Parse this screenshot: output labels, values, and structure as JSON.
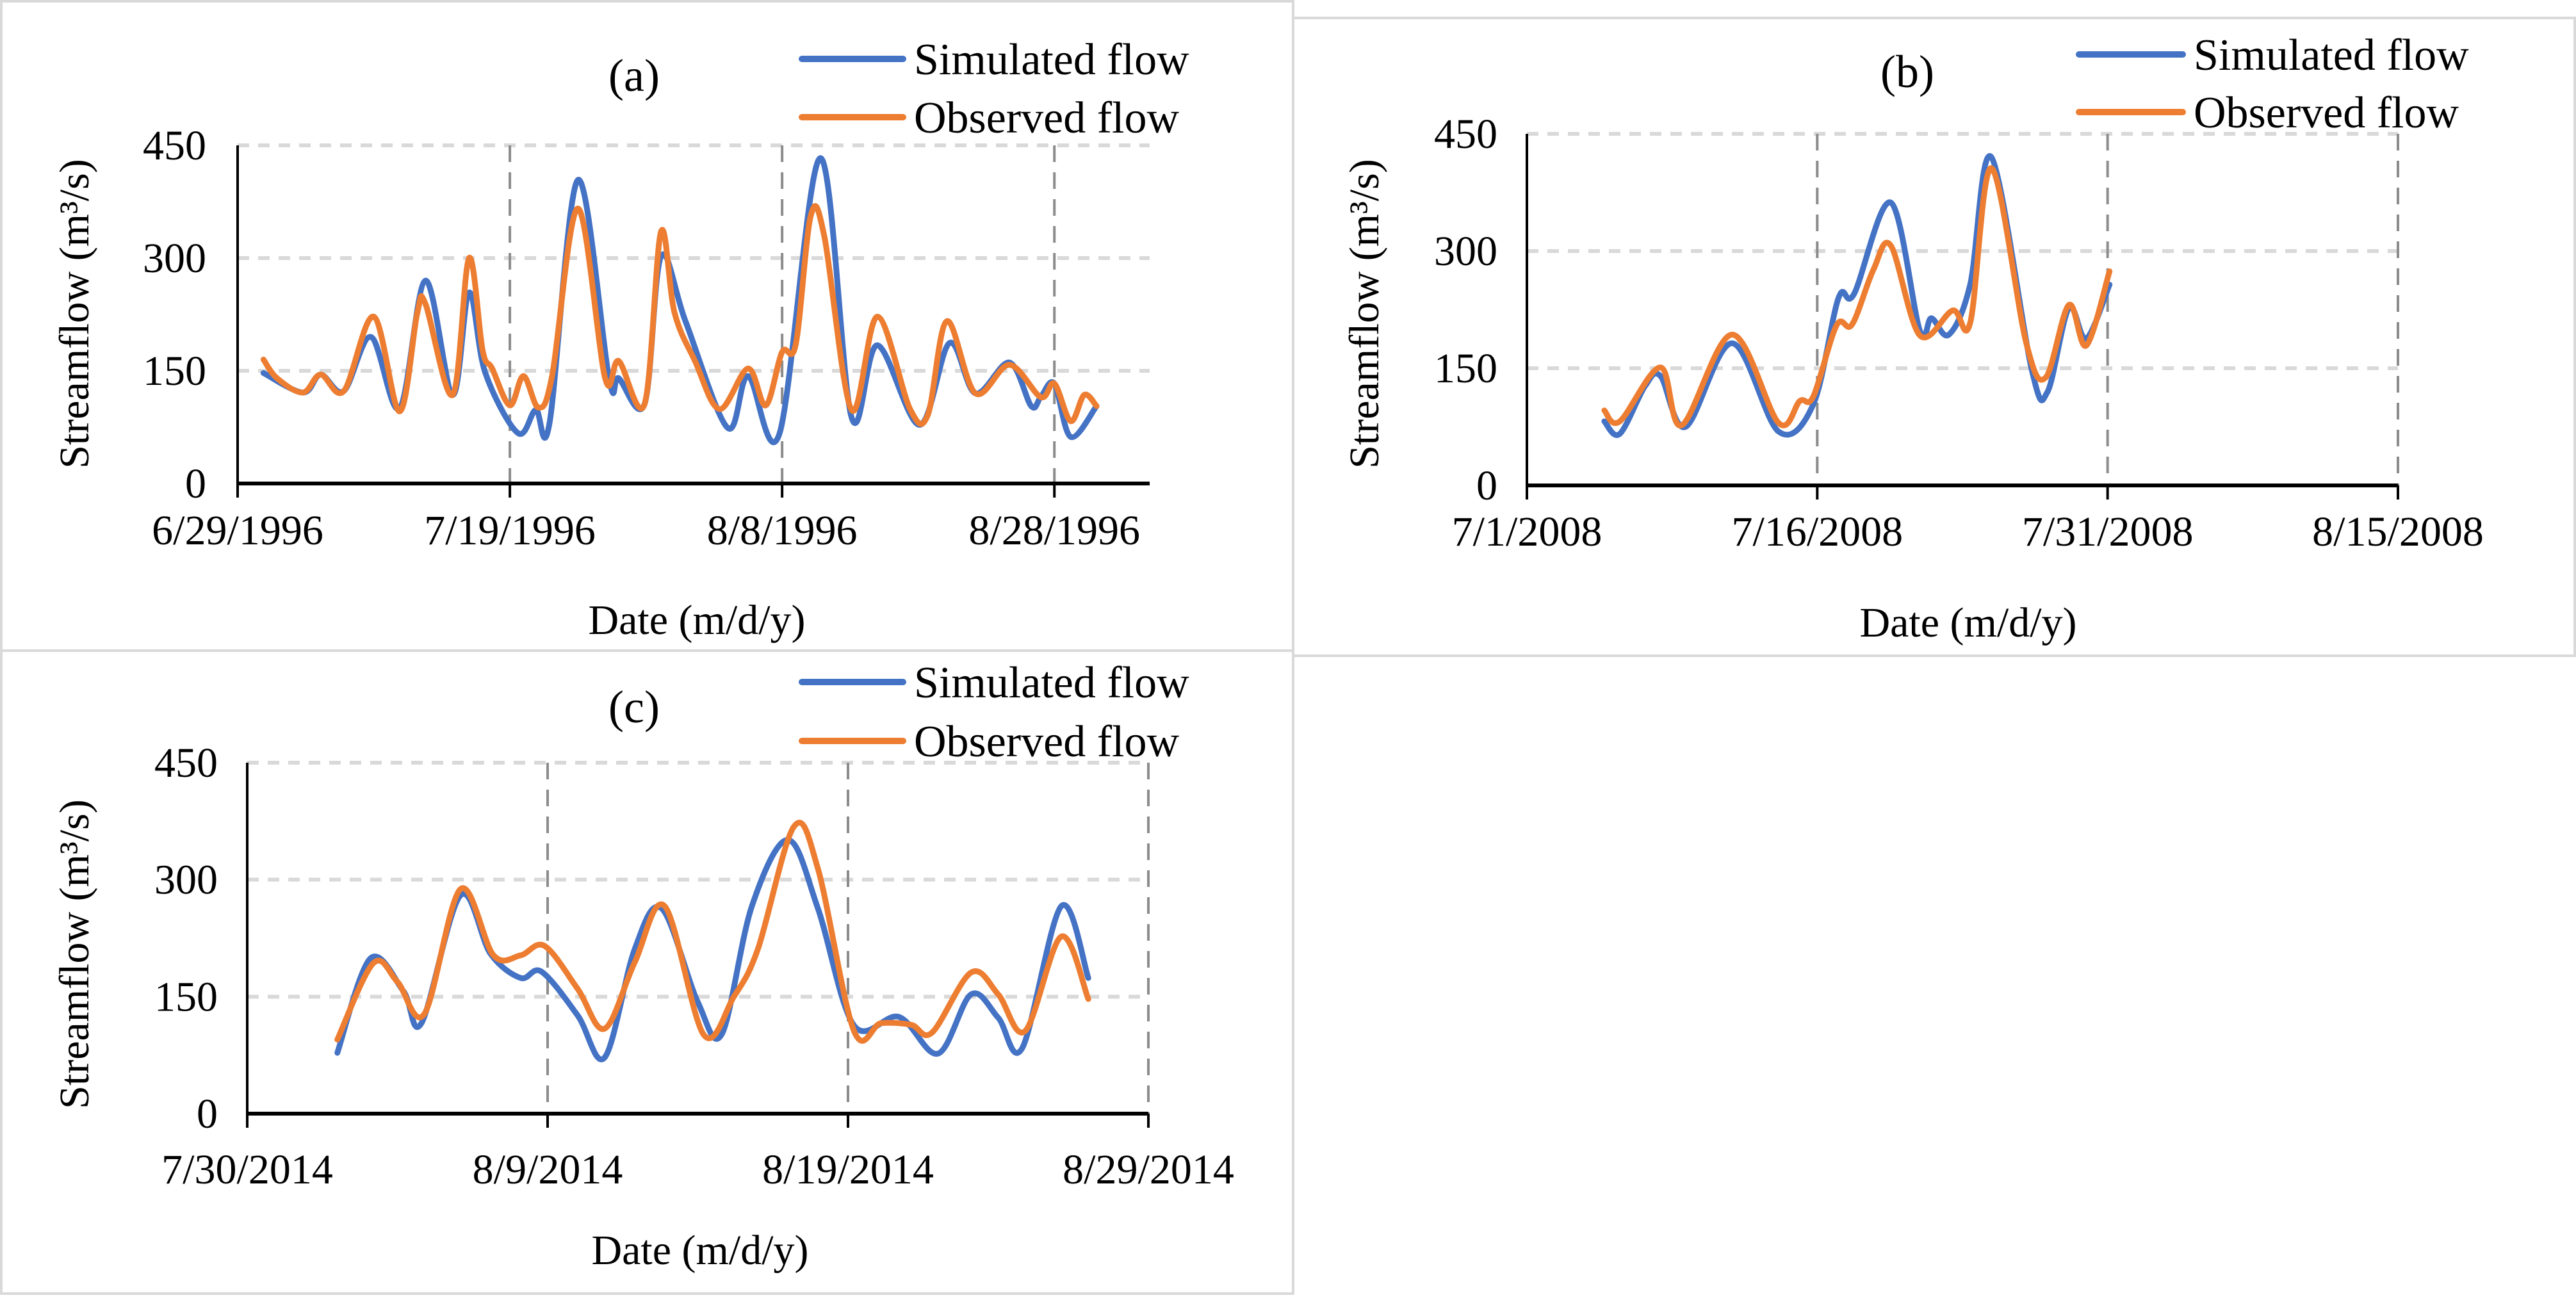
{
  "colors": {
    "simulated": "#4472C4",
    "observed": "#ED7D31",
    "grid": "#D9D9D9",
    "vgrid": "#8C8C8C",
    "border": "#D9D9D9"
  },
  "chart_data": [
    {
      "type": "line",
      "title": "(a)",
      "xlabel": "Date (m/d/y)",
      "ylabel": "Streamflow (m³/s)",
      "x_unit": "days since 6/29/1996",
      "xlim": [
        0,
        67
      ],
      "ylim": [
        0,
        450
      ],
      "yticks": [
        {
          "v": 0,
          "label": "0"
        },
        {
          "v": 150,
          "label": "150"
        },
        {
          "v": 300,
          "label": "300"
        },
        {
          "v": 450,
          "label": "450"
        }
      ],
      "xticks": [
        {
          "v": 0,
          "label": "6/29/1996"
        },
        {
          "v": 20,
          "label": "7/19/1996"
        },
        {
          "v": 40,
          "label": "8/8/1996"
        },
        {
          "v": 60,
          "label": "8/28/1996"
        }
      ],
      "legend": "top-right",
      "series": [
        {
          "name": "Simulated flow",
          "color_key": "simulated",
          "points": [
            [
              1.9,
              147
            ],
            [
              4.8,
              121
            ],
            [
              6.1,
              145
            ],
            [
              7.8,
              123
            ],
            [
              9.8,
              195
            ],
            [
              11.9,
              100
            ],
            [
              13.8,
              270
            ],
            [
              15.8,
              118
            ],
            [
              17.0,
              254
            ],
            [
              18.2,
              147
            ],
            [
              20.6,
              67
            ],
            [
              21.9,
              98
            ],
            [
              22.9,
              79
            ],
            [
              25.0,
              404
            ],
            [
              27.3,
              138
            ],
            [
              28.0,
              140
            ],
            [
              29.9,
              106
            ],
            [
              31.1,
              302
            ],
            [
              32.9,
              216
            ],
            [
              36.0,
              74
            ],
            [
              37.5,
              143
            ],
            [
              39.8,
              66
            ],
            [
              42.8,
              433
            ],
            [
              45.1,
              88
            ],
            [
              47.0,
              184
            ],
            [
              50.1,
              78
            ],
            [
              52.3,
              187
            ],
            [
              54.2,
              120
            ],
            [
              56.7,
              161
            ],
            [
              58.3,
              103
            ],
            [
              59.0,
              115
            ],
            [
              60.0,
              133
            ],
            [
              61.2,
              62
            ],
            [
              63.1,
              103
            ]
          ]
        },
        {
          "name": "Observed flow",
          "color_key": "observed",
          "points": [
            [
              1.9,
              165
            ],
            [
              2.9,
              140
            ],
            [
              4.8,
              121
            ],
            [
              6.1,
              145
            ],
            [
              7.8,
              123
            ],
            [
              10.0,
              222
            ],
            [
              11.9,
              96
            ],
            [
              13.2,
              227
            ],
            [
              13.8,
              239
            ],
            [
              15.8,
              118
            ],
            [
              17.0,
              300
            ],
            [
              18.0,
              177
            ],
            [
              18.7,
              153
            ],
            [
              20.0,
              104
            ],
            [
              21.0,
              143
            ],
            [
              22.1,
              101
            ],
            [
              23.1,
              143
            ],
            [
              25.0,
              366
            ],
            [
              27.0,
              140
            ],
            [
              28.0,
              163
            ],
            [
              29.9,
              106
            ],
            [
              31.1,
              335
            ],
            [
              32.1,
              227
            ],
            [
              33.6,
              163
            ],
            [
              35.4,
              99
            ],
            [
              37.5,
              153
            ],
            [
              38.8,
              104
            ],
            [
              40.0,
              175
            ],
            [
              41.0,
              185
            ],
            [
              42.1,
              356
            ],
            [
              43.1,
              329
            ],
            [
              45.1,
              98
            ],
            [
              47.0,
              222
            ],
            [
              49.4,
              99
            ],
            [
              50.7,
              91
            ],
            [
              52.1,
              216
            ],
            [
              54.2,
              120
            ],
            [
              56.7,
              158
            ],
            [
              59.0,
              115
            ],
            [
              60.0,
              133
            ],
            [
              61.2,
              83
            ],
            [
              62.2,
              118
            ],
            [
              63.1,
              103
            ]
          ]
        }
      ]
    },
    {
      "type": "line",
      "title": "(b)",
      "xlabel": "Date (m/d/y)",
      "ylabel": "Streamflow (m³/s)",
      "x_unit": "days since 7/1/2008",
      "xlim": [
        0,
        45
      ],
      "ylim": [
        0,
        450
      ],
      "yticks": [
        {
          "v": 0,
          "label": "0"
        },
        {
          "v": 150,
          "label": "150"
        },
        {
          "v": 300,
          "label": "300"
        },
        {
          "v": 450,
          "label": "450"
        }
      ],
      "xticks": [
        {
          "v": 0,
          "label": "7/1/2008"
        },
        {
          "v": 15,
          "label": "7/16/2008"
        },
        {
          "v": 30,
          "label": "7/31/2008"
        },
        {
          "v": 45,
          "label": "8/15/2008"
        }
      ],
      "legend": "top-right",
      "series": [
        {
          "name": "Simulated flow",
          "color_key": "simulated",
          "points": [
            [
              4.0,
              82
            ],
            [
              4.8,
              66
            ],
            [
              6.1,
              127
            ],
            [
              6.9,
              140
            ],
            [
              8.2,
              75
            ],
            [
              10.6,
              182
            ],
            [
              13.0,
              69
            ],
            [
              14.8,
              104
            ],
            [
              16.1,
              240
            ],
            [
              16.9,
              245
            ],
            [
              18.8,
              362
            ],
            [
              20.3,
              198
            ],
            [
              20.9,
              214
            ],
            [
              21.8,
              193
            ],
            [
              22.9,
              257
            ],
            [
              24.0,
              420
            ],
            [
              26.1,
              146
            ],
            [
              26.9,
              120
            ],
            [
              28.0,
              227
            ],
            [
              28.9,
              188
            ],
            [
              30.1,
              257
            ]
          ]
        },
        {
          "name": "Observed flow",
          "color_key": "observed",
          "points": [
            [
              4.0,
              96
            ],
            [
              4.8,
              82
            ],
            [
              6.9,
              151
            ],
            [
              8.0,
              77
            ],
            [
              10.6,
              193
            ],
            [
              13.0,
              80
            ],
            [
              14.1,
              108
            ],
            [
              14.8,
              114
            ],
            [
              16.0,
              205
            ],
            [
              16.8,
              206
            ],
            [
              17.9,
              276
            ],
            [
              18.8,
              307
            ],
            [
              20.3,
              192
            ],
            [
              22.0,
              224
            ],
            [
              22.9,
              208
            ],
            [
              24.0,
              406
            ],
            [
              25.8,
              182
            ],
            [
              26.8,
              138
            ],
            [
              28.0,
              231
            ],
            [
              28.9,
              179
            ],
            [
              30.1,
              274
            ]
          ]
        }
      ]
    },
    {
      "type": "line",
      "title": "(c)",
      "xlabel": "Date (m/d/y)",
      "ylabel": "Streamflow (m³/s)",
      "x_unit": "days since 7/30/2014",
      "xlim": [
        0,
        30
      ],
      "ylim": [
        0,
        450
      ],
      "yticks": [
        {
          "v": 0,
          "label": "0"
        },
        {
          "v": 150,
          "label": "150"
        },
        {
          "v": 300,
          "label": "300"
        },
        {
          "v": 450,
          "label": "450"
        }
      ],
      "xticks": [
        {
          "v": 0,
          "label": "7/30/2014"
        },
        {
          "v": 10,
          "label": "8/9/2014"
        },
        {
          "v": 20,
          "label": "8/19/2014"
        },
        {
          "v": 30,
          "label": "8/29/2014"
        }
      ],
      "legend": "top-right",
      "series": [
        {
          "name": "Simulated flow",
          "color_key": "simulated",
          "points": [
            [
              3.0,
              78
            ],
            [
              4.1,
              199
            ],
            [
              5.2,
              157
            ],
            [
              5.8,
              116
            ],
            [
              7.1,
              280
            ],
            [
              8.1,
              205
            ],
            [
              9.1,
              174
            ],
            [
              9.8,
              182
            ],
            [
              11.0,
              126
            ],
            [
              11.9,
              72
            ],
            [
              12.9,
              211
            ],
            [
              13.8,
              263
            ],
            [
              15.0,
              143
            ],
            [
              15.8,
              102
            ],
            [
              16.8,
              266
            ],
            [
              18.0,
              351
            ],
            [
              19.0,
              263
            ],
            [
              20.2,
              113
            ],
            [
              21.7,
              124
            ],
            [
              23.0,
              77
            ],
            [
              24.1,
              153
            ],
            [
              25.0,
              123
            ],
            [
              25.8,
              84
            ],
            [
              27.1,
              266
            ],
            [
              28.0,
              174
            ]
          ]
        },
        {
          "name": "Observed flow",
          "color_key": "observed",
          "points": [
            [
              3.0,
              95
            ],
            [
              4.2,
              193
            ],
            [
              5.0,
              169
            ],
            [
              5.9,
              128
            ],
            [
              7.1,
              288
            ],
            [
              8.2,
              203
            ],
            [
              9.1,
              203
            ],
            [
              9.9,
              215
            ],
            [
              11.0,
              160
            ],
            [
              11.9,
              109
            ],
            [
              12.9,
              194
            ],
            [
              13.9,
              266
            ],
            [
              15.2,
              101
            ],
            [
              16.2,
              150
            ],
            [
              17.0,
              211
            ],
            [
              18.2,
              368
            ],
            [
              19.0,
              314
            ],
            [
              20.2,
              106
            ],
            [
              21.1,
              116
            ],
            [
              22.1,
              114
            ],
            [
              22.8,
              104
            ],
            [
              24.1,
              181
            ],
            [
              25.0,
              153
            ],
            [
              25.9,
              106
            ],
            [
              27.1,
              227
            ],
            [
              28.0,
              147
            ]
          ]
        }
      ]
    }
  ]
}
